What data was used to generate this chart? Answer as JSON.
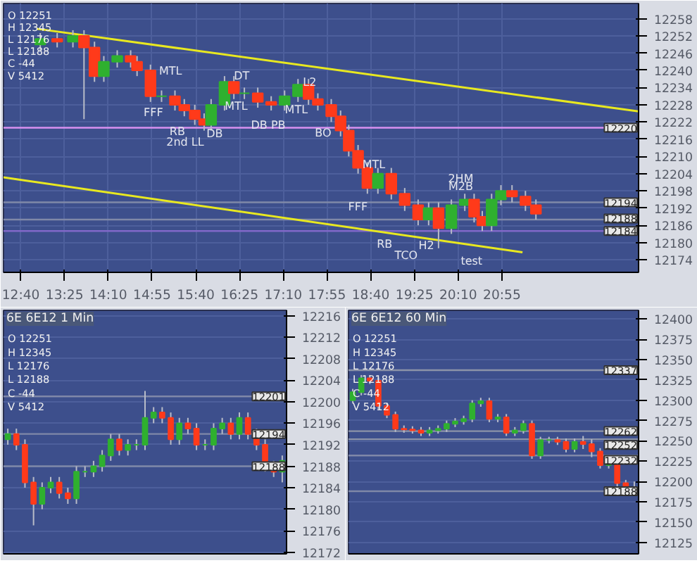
{
  "chart_data": [
    {
      "type": "candlestick",
      "x": [
        13.0,
        13.29,
        13.56,
        13.75,
        13.93,
        14.09,
        14.32,
        14.55,
        14.66,
        14.89,
        15.08,
        15.31,
        15.47,
        15.65,
        15.81,
        15.93,
        16.16,
        16.32,
        16.5,
        16.73,
        16.96,
        17.19,
        17.42,
        17.6,
        17.76,
        17.99,
        18.15,
        18.29,
        18.45,
        18.61,
        18.79,
        19.02,
        19.25,
        19.48,
        19.66,
        19.83,
        20.05,
        20.28,
        20.44,
        20.58,
        20.74,
        20.9,
        21.09,
        21.32,
        21.5
      ],
      "ohlc": [
        [
          12249,
          12253,
          12247,
          12251
        ],
        [
          12251,
          12253,
          12248,
          12250
        ],
        [
          12250,
          12254,
          12248,
          12252
        ],
        [
          12252,
          12254,
          12223,
          12248
        ],
        [
          12248,
          12250,
          12236,
          12238
        ],
        [
          12238,
          12245,
          12236,
          12243
        ],
        [
          12243,
          12247,
          12241,
          12245
        ],
        [
          12245,
          12247,
          12241,
          12243
        ],
        [
          12243,
          12245,
          12238,
          12240
        ],
        [
          12240,
          12242,
          12229,
          12231
        ],
        [
          12231,
          12233,
          12229,
          12231
        ],
        [
          12231,
          12233,
          12226,
          12228
        ],
        [
          12228,
          12230,
          12224,
          12226
        ],
        [
          12226,
          12228,
          12221,
          12223
        ],
        [
          12223,
          12225,
          12219,
          12221
        ],
        [
          12221,
          12230,
          12219,
          12228
        ],
        [
          12228,
          12238,
          12226,
          12236
        ],
        [
          12236,
          12238,
          12230,
          12232
        ],
        [
          12232,
          12234,
          12230,
          12232
        ],
        [
          12232,
          12234,
          12227,
          12229
        ],
        [
          12229,
          12231,
          12226,
          12228
        ],
        [
          12228,
          12233,
          12226,
          12231
        ],
        [
          12231,
          12237,
          12229,
          12235
        ],
        [
          12235,
          12237,
          12228,
          12230
        ],
        [
          12230,
          12232,
          12226,
          12228
        ],
        [
          12228,
          12230,
          12222,
          12224
        ],
        [
          12224,
          12226,
          12217,
          12219
        ],
        [
          12219,
          12221,
          12210,
          12212
        ],
        [
          12212,
          12214,
          12204,
          12206
        ],
        [
          12206,
          12208,
          12197,
          12199
        ],
        [
          12199,
          12206,
          12197,
          12204
        ],
        [
          12204,
          12206,
          12195,
          12197
        ],
        [
          12197,
          12199,
          12191,
          12193
        ],
        [
          12193,
          12195,
          12186,
          12188
        ],
        [
          12188,
          12194,
          12186,
          12192
        ],
        [
          12192,
          12194,
          12178,
          12185
        ],
        [
          12185,
          12195,
          12183,
          12193
        ],
        [
          12193,
          12197,
          12191,
          12195
        ],
        [
          12195,
          12197,
          12187,
          12189
        ],
        [
          12189,
          12191,
          12184,
          12186
        ],
        [
          12186,
          12197,
          12184,
          12195
        ],
        [
          12195,
          12200,
          12193,
          12198
        ],
        [
          12198,
          12200,
          12194,
          12196
        ],
        [
          12196,
          12198,
          12191,
          12193
        ],
        [
          12193,
          12195,
          12188,
          12190
        ]
      ],
      "series": [
        {
          "type": "line",
          "color": "#e8e820",
          "x": [
            12.94,
            23.26
          ],
          "values": [
            12254.5,
            12225.7
          ]
        },
        {
          "type": "line",
          "color": "#e8e820",
          "x": [
            12.37,
            21.27
          ],
          "values": [
            12202.7,
            12176.6
          ]
        }
      ],
      "xlim": [
        12.37,
        23.26
      ],
      "ylim": [
        12169.6,
        12263.3
      ],
      "xticks": [
        {
          "value": 12.667,
          "label": "12:40"
        },
        {
          "value": 13.417,
          "label": "13:25"
        },
        {
          "value": 14.167,
          "label": "14:10"
        },
        {
          "value": 14.917,
          "label": "14:55"
        },
        {
          "value": 15.667,
          "label": "15:40"
        },
        {
          "value": 16.417,
          "label": "16:25"
        },
        {
          "value": 17.167,
          "label": "17:10"
        },
        {
          "value": 17.917,
          "label": "17:55"
        },
        {
          "value": 18.667,
          "label": "18:40"
        },
        {
          "value": 19.417,
          "label": "19:25"
        },
        {
          "value": 20.167,
          "label": "20:10"
        },
        {
          "value": 20.917,
          "label": "20:55"
        }
      ],
      "yticks": [
        12174,
        12180,
        12186,
        12192,
        12198,
        12204,
        12210,
        12216,
        12222,
        12228,
        12234,
        12240,
        12246,
        12252,
        12258
      ],
      "grid": true,
      "ref_lines": [
        {
          "axis": "y",
          "value": 12220,
          "label": "12220",
          "color": "#d890f0"
        },
        {
          "axis": "y",
          "value": 12184,
          "label": "12184",
          "color": "#8068c8"
        },
        {
          "axis": "y",
          "value": 12194,
          "label": "12194",
          "color": "#7f88a8"
        },
        {
          "axis": "y",
          "value": 12188,
          "label": "12188",
          "color": "#7f88a8"
        }
      ],
      "annotations": [
        "O  12251",
        "H  12345",
        "L  12176",
        "L  12188",
        "C  -44",
        "V  5412",
        "MTL",
        "FFF",
        {
          "text": "RB",
          "x": 15.35,
          "y": 12218.6
        },
        "2nd LL",
        {
          "text": "DB",
          "x": 15.99,
          "y": 12217.8
        },
        "DT",
        {
          "text": "MTL",
          "x": 16.36,
          "y": 12227.5
        },
        {
          "text": "DB PB",
          "x": 16.91,
          "y": 12220.9
        },
        "MTL",
        {
          "text": "L2",
          "x": 17.62,
          "y": 12235.9
        },
        {
          "text": "BO",
          "x": 17.85,
          "y": 12218.2
        },
        {
          "text": "MTL",
          "x": 18.72,
          "y": 12207.2
        },
        "FFF",
        "RB",
        "TCO",
        {
          "text": "H2",
          "x": 19.62,
          "y": 12178.9
        },
        "2HM",
        "M2B",
        "test"
      ]
    },
    {
      "type": "candlestick",
      "title": "6E 6E12 1 Min",
      "categories": [
        null,
        null,
        null,
        null,
        null,
        null,
        null,
        null,
        null,
        null,
        null,
        null,
        null,
        null,
        null,
        null,
        null,
        null,
        null,
        null,
        null,
        null,
        null,
        null,
        null,
        null,
        null,
        null,
        null,
        null,
        null,
        null,
        null
      ],
      "ohlc": [
        [
          12193,
          12195,
          12192,
          12194
        ],
        [
          12194,
          12195,
          12191,
          12192
        ],
        [
          12192,
          12193,
          12184,
          12185
        ],
        [
          12185,
          12186,
          12177,
          12181
        ],
        [
          12181,
          12185,
          12180,
          12184
        ],
        [
          12184,
          12186,
          12183,
          12185
        ],
        [
          12185,
          12186,
          12182,
          12183
        ],
        [
          12183,
          12184,
          12181,
          12182
        ],
        [
          12182,
          12188,
          12181,
          12187
        ],
        [
          12187,
          12188,
          12186,
          12187
        ],
        [
          12187,
          12189,
          12186,
          12188
        ],
        [
          12188,
          12191,
          12187,
          12190
        ],
        [
          12190,
          12194,
          12189,
          12193
        ],
        [
          12193,
          12194,
          12190,
          12191
        ],
        [
          12191,
          12193,
          12190,
          12192
        ],
        [
          12192,
          12193,
          12191,
          12192
        ],
        [
          12192,
          12202,
          12191,
          12197
        ],
        [
          12197,
          12199,
          12196,
          12198
        ],
        [
          12198,
          12199,
          12196,
          12197
        ],
        [
          12197,
          12198,
          12192,
          12193
        ],
        [
          12193,
          12197,
          12192,
          12196
        ],
        [
          12196,
          12197,
          12194,
          12195
        ],
        [
          12195,
          12196,
          12191,
          12192
        ],
        [
          12192,
          12193,
          12191,
          12192
        ],
        [
          12192,
          12196,
          12191,
          12195
        ],
        [
          12195,
          12197,
          12194,
          12196
        ],
        [
          12196,
          12197,
          12193,
          12194
        ],
        [
          12194,
          12198,
          12193,
          12197
        ],
        [
          12197,
          12198,
          12193,
          12194
        ],
        [
          12194,
          12195,
          12191,
          12192
        ],
        [
          12192,
          12193,
          12187,
          12188
        ],
        [
          12188,
          12189,
          12186,
          12187
        ],
        [
          12187,
          12190,
          12185,
          12189
        ]
      ],
      "ylim": [
        12171.7,
        12217
      ],
      "yticks": [
        12172,
        12176,
        12180,
        12184,
        12188,
        12192,
        12196,
        12200,
        12204,
        12208,
        12212,
        12216
      ],
      "tick_labels": "y",
      "grid": true,
      "ref_lines": [
        {
          "axis": "y",
          "value": 12201,
          "label": "12201",
          "color": "#7f88a8"
        },
        {
          "axis": "y",
          "value": 12194,
          "label": "12194",
          "color": "#7f88a8"
        },
        {
          "axis": "y",
          "value": 12188,
          "label": "12188",
          "color": "#7f88a8"
        }
      ],
      "annotations": [
        "O  12251",
        "H  12345",
        "L  12176",
        "L  12188",
        "C  -44",
        "V  5412"
      ]
    },
    {
      "type": "candlestick",
      "title": "6E 6E12 60 Min",
      "categories": [
        null,
        null,
        null,
        null,
        null,
        null,
        null,
        null,
        null,
        null,
        null,
        null,
        null,
        null,
        null,
        null,
        null,
        null,
        null,
        null,
        null,
        null,
        null,
        null,
        null,
        null,
        null,
        null,
        null,
        null,
        null,
        null,
        null,
        null
      ],
      "ohlc": [
        [
          12300,
          12314,
          12296,
          12310
        ],
        [
          12310,
          12331,
          12306,
          12327
        ],
        [
          12327,
          12331,
          12320,
          12324
        ],
        [
          12324,
          12328,
          12289,
          12293
        ],
        [
          12293,
          12297,
          12278,
          12282
        ],
        [
          12282,
          12286,
          12261,
          12265
        ],
        [
          12265,
          12269,
          12260,
          12264
        ],
        [
          12264,
          12268,
          12259,
          12263
        ],
        [
          12263,
          12267,
          12256,
          12260
        ],
        [
          12260,
          12267,
          12256,
          12263
        ],
        [
          12263,
          12269,
          12259,
          12265
        ],
        [
          12265,
          12275,
          12261,
          12271
        ],
        [
          12271,
          12278,
          12267,
          12274
        ],
        [
          12274,
          12281,
          12270,
          12277
        ],
        [
          12277,
          12300,
          12273,
          12296
        ],
        [
          12296,
          12303,
          12292,
          12299
        ],
        [
          12299,
          12303,
          12273,
          12277
        ],
        [
          12277,
          12283,
          12273,
          12279
        ],
        [
          12279,
          12283,
          12256,
          12260
        ],
        [
          12260,
          12267,
          12256,
          12263
        ],
        [
          12263,
          12275,
          12259,
          12271
        ],
        [
          12271,
          12275,
          12228,
          12232
        ],
        [
          12232,
          12255,
          12228,
          12251
        ],
        [
          12251,
          12255,
          12247,
          12251
        ],
        [
          12251,
          12255,
          12245,
          12249
        ],
        [
          12249,
          12253,
          12236,
          12240
        ],
        [
          12240,
          12253,
          12236,
          12249
        ],
        [
          12249,
          12256,
          12240,
          12246
        ],
        [
          12246,
          12252,
          12230,
          12237
        ],
        [
          12237,
          12241,
          12216,
          12220
        ],
        [
          12220,
          12227,
          12216,
          12223
        ],
        [
          12223,
          12230,
          12190,
          12198
        ],
        [
          12198,
          12202,
          12188,
          12192
        ],
        [
          12192,
          12200,
          12183,
          12190
        ]
      ],
      "ylim": [
        12111,
        12410.6
      ],
      "yticks": [
        12125,
        12150,
        12175,
        12200,
        12225,
        12250,
        12275,
        12300,
        12325,
        12350,
        12375,
        12400
      ],
      "tick_labels": "y",
      "grid": true,
      "ref_lines": [
        {
          "axis": "y",
          "value": 12337,
          "label": "12337",
          "color": "#8c93a8"
        },
        {
          "axis": "y",
          "value": 12262,
          "label": "12262",
          "color": "#8c93a8"
        },
        {
          "axis": "y",
          "value": 12252,
          "label": "12252",
          "color": "#8c93a8"
        },
        {
          "axis": "y",
          "value": 12232,
          "label": "12232",
          "color": "#7f88a8"
        },
        {
          "axis": "y",
          "value": 12188,
          "label": "12188",
          "color": "#7f88a8"
        }
      ],
      "annotations": [
        "O  12251",
        "H  12345",
        "L  12176",
        "L  12188",
        "C  -44",
        "V  5412"
      ]
    }
  ]
}
